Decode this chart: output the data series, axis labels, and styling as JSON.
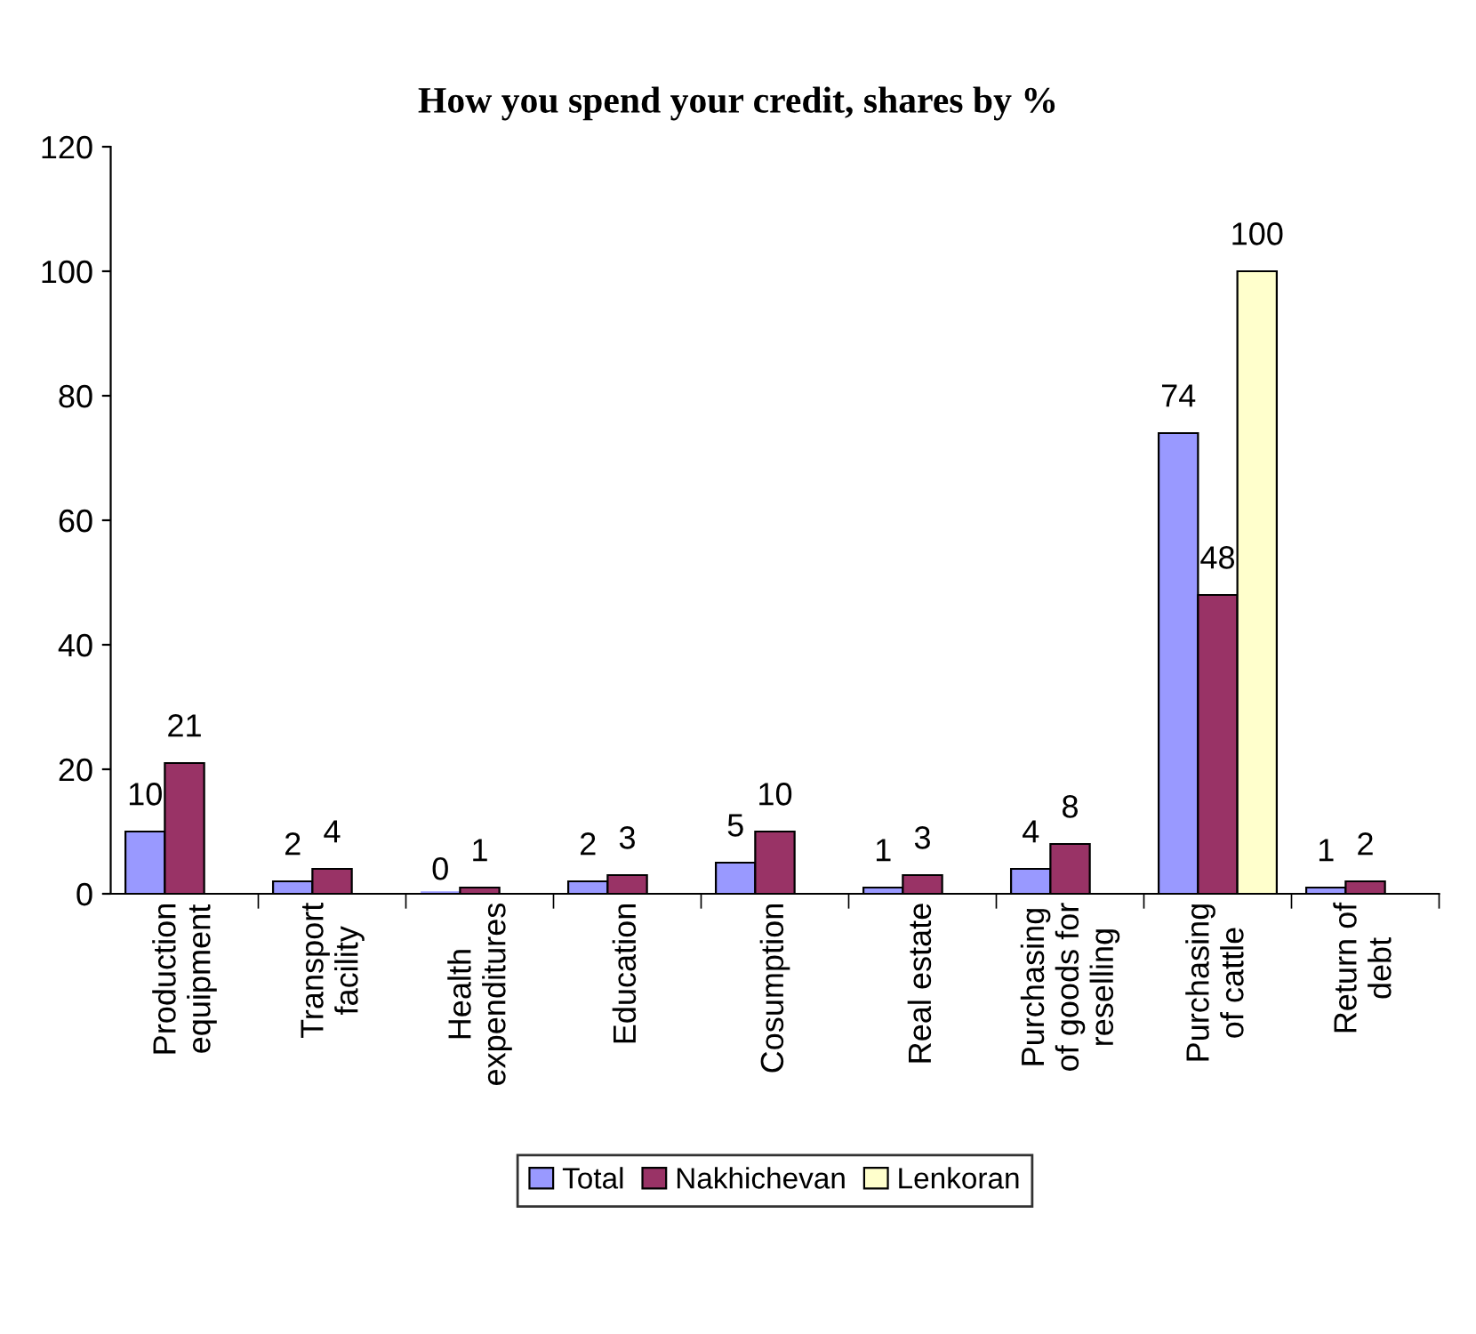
{
  "chart_data": {
    "type": "bar",
    "title": "How you spend your credit, shares by %",
    "categories": [
      "Production\nequipment",
      "Transport\nfacility",
      "Health\nexpenditures",
      "Education",
      "Cosumption",
      "Real estate",
      "Purchasing\nof goods for\nreselling",
      "Purchasing\nof cattle",
      "Return of\ndebt"
    ],
    "series": [
      {
        "name": "Total",
        "color": "#9999ff",
        "values": [
          10,
          2,
          0,
          2,
          5,
          1,
          4,
          74,
          1
        ]
      },
      {
        "name": "Nakhichevan",
        "color": "#993366",
        "values": [
          21,
          4,
          1,
          3,
          10,
          3,
          8,
          48,
          2
        ]
      },
      {
        "name": "Lenkoran",
        "color": "#ffffcc",
        "values": [
          null,
          null,
          null,
          null,
          null,
          null,
          null,
          100,
          null
        ]
      }
    ],
    "ylim": [
      0,
      120
    ],
    "yticks": [
      0,
      20,
      40,
      60,
      80,
      100,
      120
    ],
    "grid": false,
    "legend": "bottom",
    "data_labels": true
  }
}
